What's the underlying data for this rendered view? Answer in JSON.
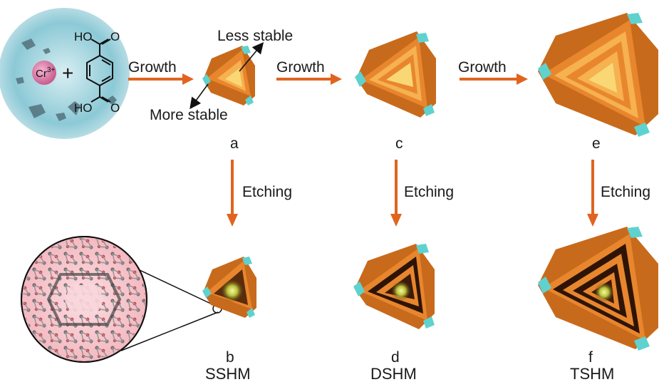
{
  "labels": {
    "growth_1": "Growth",
    "growth_2": "Growth",
    "growth_3": "Growth",
    "etching_1": "Etching",
    "etching_2": "Etching",
    "etching_3": "Etching",
    "less_stable": "Less stable",
    "more_stable": "More stable",
    "panel_a": "a",
    "panel_b": "b",
    "panel_c": "c",
    "panel_d": "d",
    "panel_e": "e",
    "panel_f": "f",
    "sshm": "SSHM",
    "dshm": "DSHM",
    "tshm": "TSHM"
  },
  "chemistry": {
    "ion_base": "Cr",
    "ion_charge": "3+",
    "plus": "+",
    "ho_top": "HO",
    "o_top": "O",
    "ho_bottom": "HO",
    "o_bottom": "O"
  },
  "colors": {
    "arrow": "#e0641f",
    "shell_orange": "#e8862e",
    "shell_light": "#f6b150",
    "core_yellow": "#fad775",
    "corner_cyan": "#5fd2cf",
    "dark_gap": "#3a1a0a",
    "solution_blue": "#7fc9d6",
    "mof_disc": "#f6c9cf"
  }
}
